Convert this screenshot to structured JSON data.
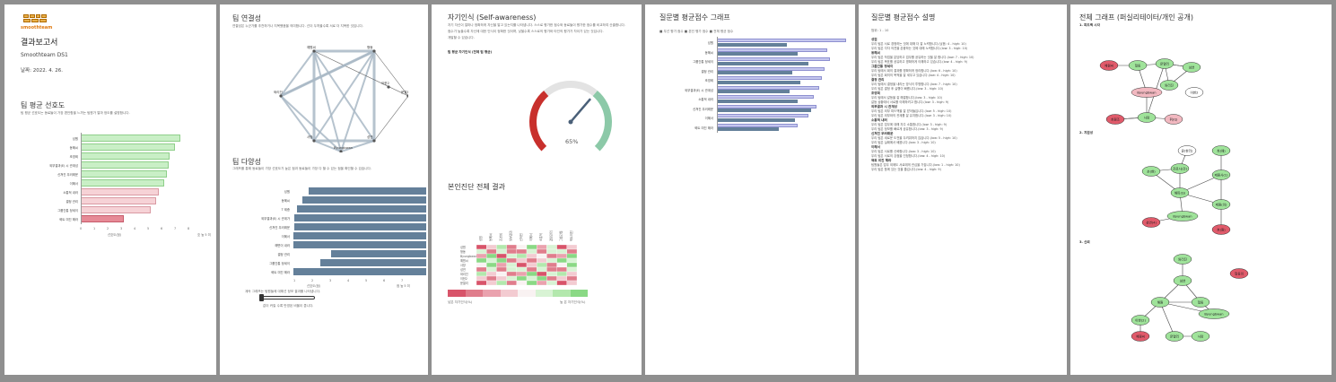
{
  "colors": {
    "frame": "#8f8f8f",
    "slate": "#64809a",
    "green": "#c9efc6",
    "pink": "#f6d2d6",
    "red": "#e68a96",
    "lavender": "#c5c7ee",
    "gauge_red": "#c8302c",
    "gauge_green": "#8cc9a8"
  },
  "cover": {
    "logo_text": "smoothteam",
    "title": "결과보고서",
    "team": "Smoothteam DS1",
    "date": "날짜: 2022. 4. 26.",
    "pref_title": "팀 평균 선호도",
    "pref_desc": "팀 평균 선호도는 동료들이 가장 편안함을 느끼는 팀원가 얼마 정도를 설명합니다.",
    "pref_xlabel": "선호도(점)",
    "pref_xmax_label": "호 높 5 미",
    "pref_ticks": [
      "0",
      "1",
      "2",
      "3",
      "4",
      "5",
      "6",
      "7",
      "8"
    ],
    "pref_bars": [
      {
        "label": "성원",
        "value": 7.4,
        "tone": "green"
      },
      {
        "label": "동혜씨",
        "value": 7.0,
        "tone": "green"
      },
      {
        "label": "조영희",
        "value": 6.6,
        "tone": "green"
      },
      {
        "label": "외부결과(E) 시 관계성",
        "value": 6.5,
        "tone": "green"
      },
      {
        "label": "신쳐진 우러래운",
        "value": 6.4,
        "tone": "green"
      },
      {
        "label": "이혜서",
        "value": 6.2,
        "tone": "green"
      },
      {
        "label": "소통적 내러",
        "value": 5.8,
        "tone": "pink"
      },
      {
        "label": "결정 관리",
        "value": 5.6,
        "tone": "pink"
      },
      {
        "label": "그룹간통 정세이",
        "value": 5.2,
        "tone": "pink"
      },
      {
        "label": "혁트 미진 해라",
        "value": 3.2,
        "tone": "red"
      }
    ]
  },
  "connectivity": {
    "title": "팀 연결성",
    "desc": "연결성은 누군가를 추천하거나 지목했음을 의미합니다. 선이 두꺼울수록 서로 더 지목한 것입니다.",
    "nodes": [
      "예원씨",
      "형동",
      "문열리",
      "성연",
      "사망",
      "Byungbwan",
      "와리진",
      "이한2"
    ],
    "diversity_title": "팀 다양성",
    "diversity_desc": "그래프를 통해 동료들이 가장 선호도가 높은 점과 동료들이 가장 다 할 수 있는 점을 확인할 수 있습니다.",
    "diversity_bars": [
      {
        "label": "성원",
        "value": 8.2
      },
      {
        "label": "동혜씨",
        "value": 8.6
      },
      {
        "label": "T 제종",
        "value": 9.0
      },
      {
        "label": "외부결과(E) 시 관계가",
        "value": 9.2
      },
      {
        "label": "신쳐진 우러래운",
        "value": 9.2
      },
      {
        "label": "이혜서",
        "value": 9.4
      },
      {
        "label": "해변이 내러",
        "value": 9.6
      },
      {
        "label": "결정 관리",
        "value": 6.6
      },
      {
        "label": "그룹간통 정세이",
        "value": 7.4
      },
      {
        "label": "혁트 미진 해라",
        "value": 9.8
      }
    ],
    "diversity_xlabel": "선호도(점)",
    "diversity_xmax": "점 높 5 미",
    "diversity_ticks": [
      "1",
      "2",
      "3",
      "4",
      "5",
      "6",
      "7"
    ],
    "footer_note": "계속 그래프는 팀원들에 대해선 정보 결과를 나타냅니다.",
    "slider_note": "값이 커질 수록 반영된 비율이 큽니다."
  },
  "self_awareness": {
    "title": "자기인식 (Self-awareness)",
    "desc1": "자기 자신이 얼마나 정확하게 자신을 알고 있는지를 나타냅니다. 스스로 평가한 점수와 동료들이 평가한 점수를 비교하여 산출합니다.",
    "desc2": "점수가 높을수록 자신에 대한 인식이 정확한 것이며, 낮을수록 스스로의 평가와 타인의 평가가 차이가 있는 것입니다.",
    "desc3": "개발할 수 있습니다.",
    "gauge_label": "팀 평균 자기인식 (전체 팀 평균)",
    "gauge_value": 65,
    "gauge_text": "65%",
    "matrix_title": "본인진단 전체 결과",
    "matrix_cols": [
      "성원",
      "동혜씨",
      "조영희",
      "외부결과",
      "신쳐진",
      "이혜서",
      "소통적",
      "결정관리",
      "그룹간통",
      "혁트미진"
    ],
    "matrix_rows": [
      "성원",
      "형동",
      "Byungbwan",
      "예원씨",
      "사망",
      "성연",
      "와리진",
      "이한2",
      "문열리"
    ],
    "legend_left": "낮은 자기인식(%)",
    "legend_right": "높 은 자기인식(%)"
  },
  "question_chart": {
    "title": "질문별 평균점수 그래프",
    "legend": "■ 우선 평가 점수   ■ 본인 평가 점수   ■ 전체 평균 점수",
    "rows": [
      {
        "label": "성원",
        "self": 5.2,
        "team": 9.6
      },
      {
        "label": "동혜씨",
        "self": 6.0,
        "team": 8.2
      },
      {
        "label": "그룹간통 정세이",
        "self": 6.8,
        "team": 8.4
      },
      {
        "label": "결정 관리",
        "self": 5.6,
        "team": 8.0
      },
      {
        "label": "조영희",
        "self": 6.2,
        "team": 7.8
      },
      {
        "label": "외부결과(E) 시 관계성",
        "self": 5.4,
        "team": 7.6
      },
      {
        "label": "소통적 내러",
        "self": 6.0,
        "team": 7.2
      },
      {
        "label": "신쳐진 우러래운",
        "self": 7.0,
        "team": 7.4
      },
      {
        "label": "이혜서",
        "self": 5.8,
        "team": 6.8
      },
      {
        "label": "혁트 미진 해라",
        "self": 4.6,
        "team": 6.0
      }
    ]
  },
  "question_desc": {
    "title": "질문별 평균점수 설명",
    "scale": "범위: 1 - 10",
    "sections": [
      {
        "head": "성원",
        "lines": [
          "우리 팀은 서로 경청하는 것에 대해 더 잘 노력합니다.(낮음: 4 - high: 10)",
          "우리 팀은 각자 의견을 존중하는 것에 대해 노력합니다.(low: 3 - high: 10)"
        ]
      },
      {
        "head": "동혜씨",
        "lines": [
          "우리 팀은 작업을 분담하고 업무를 공유하는 것을 잘 합니다.(low: 7 - high: 10)",
          "우리 팀은 목표를 공유하고 명확하게 이해하고 있습니다.(low: 4 - high: 9)"
        ]
      },
      {
        "head": "그룹간통 정세이",
        "lines": [
          "우리 팀에서 회의 결과를 명확하게 정리합니다.(low: 6 - high: 10)",
          "우리 팀은 회의의 목적을 잘 세우고 있습니다.(low: 4 - high: 10)"
        ]
      },
      {
        "head": "결정 관리",
        "lines": [
          "우리 팀에서 결정을 내리는 방식이 투명합니다.(low: 7 - high: 10)",
          "우리 팀은 결정 후 실행이 빠릅니다.(low: 3 - high: 10)"
        ]
      },
      {
        "head": "조영희",
        "lines": [
          "우리 팀에서 갈등을 잘 해결합니다.(low: 3 - high: 10)",
          "갈등 상황에서 서로를 이해하려고 합니다.(low: 3 - high: 9)"
        ]
      },
      {
        "head": "외부결과 시 관계성",
        "lines": [
          "우리 팀은 외부 피드백을 잘 받아들입니다.(low: 5 - high: 10)",
          "우리 팀은 외부와의 관계를 잘 유지합니다.(low: 3 - high: 10)"
        ]
      },
      {
        "head": "소통적 내러",
        "lines": [
          "우리 팀은 업무에 대해 자주 소통합니다.(low: 3 - high: 9)",
          "우리 팀은 정보를 빠르게 공유합니다.(low: 3 - high: 9)"
        ]
      },
      {
        "head": "신쳐진 우러래운",
        "lines": [
          "우리 팀은 새로운 도전을 두려워하지 않습니다.(low: 5 - high: 10)",
          "우리 팀은 실패에서 배웁니다.(low: 3 - high: 10)"
        ]
      },
      {
        "head": "이혜서",
        "lines": [
          "우리 팀은 서로를 신뢰합니다.(low: 3 - high: 10)",
          "우리 팀은 서로의 강점을 인정합니다.(low: 4 - high: 10)"
        ]
      },
      {
        "head": "혁트 미진 해라",
        "lines": [
          "팀원들은 업무 외에도 서로에게 관심을 가집니다.(low: 1 - high: 10)",
          "우리 팀은 함께 있는 것을 즐깁니다.(low: 4 - high: 9)"
        ]
      }
    ]
  },
  "graphs": {
    "title": "전체 그래프 (퍼실리테이터/개인 공개)",
    "sec1": "1. 피드백 시각",
    "sec2": "2. 지원성",
    "sec3": "3. 신뢰",
    "g1_nodes": [
      "형동",
      "문열리",
      "예원씨",
      "성연",
      "와리진",
      "Byungbwan",
      "이한2",
      "사망",
      "최원조",
      "휘(Q)"
    ],
    "g2_nodes": [
      "윤(한리)",
      "최(왜)",
      "손(현)",
      "진료사(건)",
      "제원사(1)",
      "해피(Q)",
      "제원(의)",
      "Byungbwan",
      "성연(4)",
      "흐(원)"
    ],
    "g3_nodes": [
      "와리진",
      "성연",
      "해원",
      "형동",
      "이한(2)",
      "문열리",
      "Byungbwan",
      "예원씨",
      "사망",
      "형동의"
    ]
  }
}
